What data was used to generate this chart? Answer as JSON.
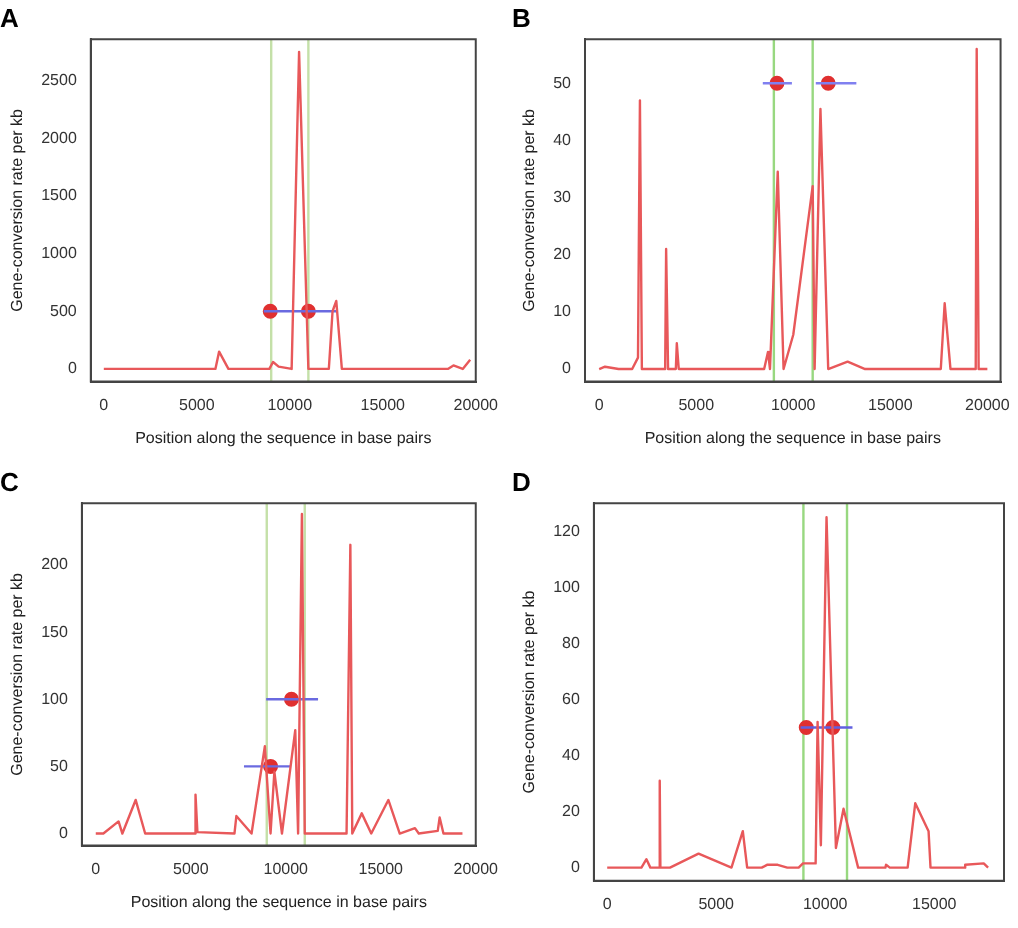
{
  "chart_data": [
    {
      "type": "line",
      "title": "A",
      "xlabel": "Position along the sequence in base pairs",
      "ylabel": "Gene-conversion rate per kb",
      "xlim": [
        -700,
        20000
      ],
      "xticks": [
        0,
        5000,
        10000,
        15000,
        20000
      ],
      "ylim": [
        -110,
        2860
      ],
      "yticks": [
        0,
        500,
        1000,
        1500,
        2000,
        2500
      ],
      "grid": false,
      "legend": false,
      "series": [
        {
          "color": "#e8585a",
          "x": [
            0,
            6000,
            6200,
            6700,
            8900,
            9100,
            9400,
            10100,
            10500,
            11000,
            12100,
            12300,
            12500,
            12800,
            16000,
            18500,
            18800,
            19300,
            19700
          ],
          "values": [
            0,
            0,
            150,
            0,
            0,
            60,
            20,
            0,
            2750,
            0,
            0,
            500,
            590,
            0,
            0,
            0,
            30,
            0,
            80
          ]
        },
        {
          "type": "line",
          "color": "#6a6ae0",
          "x": [
            8600,
            12500
          ],
          "values": [
            500,
            500
          ]
        },
        {
          "type": "scatter",
          "marker": "circle",
          "color": "#e03030",
          "x": [
            8950,
            11000
          ],
          "values": [
            500,
            500
          ]
        }
      ],
      "ref_lines": [
        {
          "axis": "x",
          "value": 9000,
          "color": "#c4e0a8"
        },
        {
          "axis": "x",
          "value": 11000,
          "color": "#c4e0a8"
        }
      ]
    },
    {
      "type": "line",
      "title": "B",
      "xlabel": "Position along the sequence in base pairs",
      "ylabel": "Gene-conversion rate per kb",
      "xlim": [
        -730,
        20680
      ],
      "xticks": [
        0,
        5000,
        10000,
        15000,
        20000
      ],
      "ylim": [
        -2.2,
        57.7
      ],
      "yticks": [
        0,
        10,
        20,
        30,
        40,
        50
      ],
      "grid": false,
      "legend": false,
      "series": [
        {
          "color": "#e8585a",
          "x": [
            0,
            300,
            1000,
            1700,
            2000,
            2100,
            2200,
            3400,
            3450,
            3550,
            3950,
            4000,
            4100,
            8500,
            8700,
            8800,
            9200,
            9500,
            10000,
            11000,
            11100,
            11400,
            11800,
            12800,
            13700,
            17600,
            17800,
            18100,
            19400,
            19450,
            19550,
            20000
          ],
          "values": [
            0,
            0.4,
            0,
            0,
            2,
            47,
            0,
            0,
            21,
            0,
            0,
            4.5,
            0,
            0,
            3,
            0,
            34.5,
            0,
            6,
            32,
            0,
            45.5,
            0,
            1.3,
            0,
            0,
            11.5,
            0,
            0,
            56,
            0,
            0
          ]
        },
        {
          "type": "line",
          "color": "#8080f0",
          "x": [
            8430,
            9930
          ],
          "values": [
            50,
            50
          ]
        },
        {
          "type": "line",
          "color": "#8080f0",
          "x": [
            11160,
            13250
          ],
          "values": [
            50,
            50
          ]
        },
        {
          "type": "scatter",
          "marker": "circle",
          "color": "#e03030",
          "x": [
            9160,
            11800
          ],
          "values": [
            50,
            50
          ]
        }
      ],
      "ref_lines": [
        {
          "axis": "x",
          "value": 9000,
          "color": "#98d880"
        },
        {
          "axis": "x",
          "value": 11000,
          "color": "#98d880"
        }
      ]
    },
    {
      "type": "line",
      "title": "C",
      "xlabel": "Position along the sequence in base pairs",
      "ylabel": "Gene-conversion rate per kb",
      "xlim": [
        -730,
        20000
      ],
      "xticks": [
        0,
        5000,
        10000,
        15000,
        20000
      ],
      "ylim": [
        -9,
        246
      ],
      "yticks": [
        0,
        50,
        100,
        150,
        200
      ],
      "grid": false,
      "legend": false,
      "series": [
        {
          "color": "#e8585a",
          "x": [
            0,
            400,
            1200,
            1400,
            2100,
            2600,
            5200,
            5250,
            5350,
            7300,
            7400,
            8200,
            8900,
            9200,
            9400,
            9800,
            10500,
            10650,
            10850,
            11000,
            13200,
            13400,
            13500,
            14000,
            14500,
            15400,
            16000,
            16800,
            17000,
            18000,
            18100,
            18300,
            19300
          ],
          "values": [
            0,
            0,
            9,
            0,
            25,
            0,
            0,
            29,
            1,
            0,
            13,
            0,
            65,
            0,
            46,
            0,
            77,
            0,
            238,
            0,
            0,
            215,
            0,
            15,
            0,
            25,
            0,
            4,
            0,
            2,
            12,
            0,
            0
          ]
        },
        {
          "type": "line",
          "color": "#6a6ae0",
          "x": [
            8970,
            11700
          ],
          "values": [
            100,
            100
          ]
        },
        {
          "type": "line",
          "color": "#6a6ae0",
          "x": [
            7800,
            10250
          ],
          "values": [
            50,
            50
          ]
        },
        {
          "type": "scatter",
          "marker": "circle",
          "color": "#e03030",
          "x": [
            10300,
            9200
          ],
          "values": [
            100,
            50
          ]
        }
      ],
      "ref_lines": [
        {
          "axis": "x",
          "value": 9000,
          "color": "#c4e0a8"
        },
        {
          "axis": "x",
          "value": 11000,
          "color": "#c4e0a8"
        }
      ]
    },
    {
      "type": "line",
      "title": "D",
      "ylabel": "Gene-conversion rate per kb",
      "xlim": [
        -610,
        18200
      ],
      "xticks": [
        0,
        5000,
        10000,
        15000
      ],
      "ylim": [
        -4.7,
        130
      ],
      "yticks": [
        0,
        20,
        40,
        60,
        80,
        100,
        120
      ],
      "grid": false,
      "legend": false,
      "series": [
        {
          "color": "#e8585a",
          "x": [
            0,
            1570,
            1800,
            1980,
            2400,
            2410,
            2440,
            2880,
            4190,
            5700,
            6220,
            6420,
            7090,
            7330,
            7820,
            8260,
            8780,
            8980,
            9560,
            9650,
            9800,
            10060,
            10490,
            10840,
            11510,
            12760,
            12790,
            12960,
            13780,
            14130,
            14740,
            14830,
            16400,
            16420,
            17270,
            17470
          ],
          "values": [
            0,
            0,
            3,
            0,
            0,
            31,
            0,
            0,
            5,
            0,
            13,
            0,
            0,
            1,
            1,
            0,
            0,
            1.5,
            1.5,
            52,
            8,
            125,
            7,
            21,
            0,
            0,
            1,
            0,
            0,
            23,
            13,
            0,
            0,
            1,
            1.5,
            0
          ]
        },
        {
          "type": "line",
          "color": "#6060e0",
          "x": [
            8870,
            11250
          ],
          "values": [
            50,
            50
          ]
        },
        {
          "type": "scatter",
          "marker": "circle",
          "color": "#e03030",
          "x": [
            9130,
            10350
          ],
          "values": [
            50,
            50
          ]
        }
      ],
      "ref_lines": [
        {
          "axis": "x",
          "value": 9000,
          "color": "#98d880"
        },
        {
          "axis": "x",
          "value": 11000,
          "color": "#98d880"
        }
      ]
    }
  ]
}
